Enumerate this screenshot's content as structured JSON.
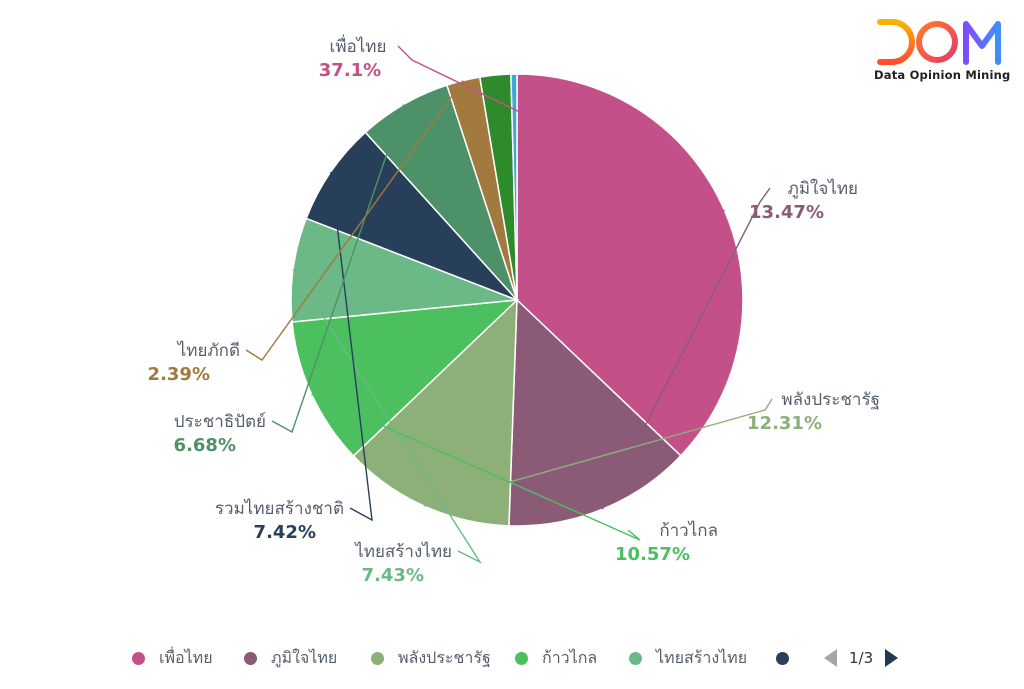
{
  "chart_data": {
    "type": "pie",
    "slices": [
      {
        "name": "เพื่อไทย",
        "value": 37.1,
        "label": "37.1%",
        "color": "#c4508a",
        "label_shown": true
      },
      {
        "name": "ภูมิใจไทย",
        "value": 13.47,
        "label": "13.47%",
        "color": "#8a5a77",
        "label_shown": true
      },
      {
        "name": "พลังประชารัฐ",
        "value": 12.31,
        "label": "12.31%",
        "color": "#8db079",
        "label_shown": true
      },
      {
        "name": "ก้าวไกล",
        "value": 10.57,
        "label": "10.57%",
        "color": "#4cbf5f",
        "label_shown": true
      },
      {
        "name": "ไทยสร้างไทย",
        "value": 7.43,
        "label": "7.43%",
        "color": "#6ab987",
        "label_shown": true
      },
      {
        "name": "รวมไทยสร้างชาติ",
        "value": 7.42,
        "label": "7.42%",
        "color": "#283f5a",
        "label_shown": true
      },
      {
        "name": "ประชาธิปัตย์",
        "value": 6.68,
        "label": "6.68%",
        "color": "#4d9169",
        "label_shown": true
      },
      {
        "name": "ไทยภักดี",
        "value": 2.39,
        "label": "2.39%",
        "color": "#a27a3f",
        "label_shown": true
      },
      {
        "name": "",
        "value": 2.2,
        "label": "",
        "color": "#2e8b2c",
        "label_shown": false
      },
      {
        "name": "",
        "value": 0.43,
        "label": "",
        "color": "#3fa7d9",
        "label_shown": false
      }
    ],
    "start": "12 o'clock",
    "direction": "clockwise",
    "legend_position": "bottom"
  },
  "legend": {
    "items": [
      {
        "label": "เพื่อไทย",
        "color": "#c4508a"
      },
      {
        "label": "ภูมิใจไทย",
        "color": "#8a5a77"
      },
      {
        "label": "พลังประชารัฐ",
        "color": "#8db079"
      },
      {
        "label": "ก้าวไกล",
        "color": "#4cbf5f"
      },
      {
        "label": "ไทยสร้างไทย",
        "color": "#6ab987"
      },
      {
        "label": "",
        "color": "#283f5a"
      }
    ],
    "page": "1/3"
  },
  "logo": {
    "letters": [
      "D",
      "O",
      "M"
    ],
    "subtitle": "Data Opinion Mining",
    "colors": {
      "d_top": "#f5b400",
      "d_bottom": "#ff4d2e",
      "o": "#e23b6a",
      "m_left": "#7c4dff",
      "m_right": "#3e8ef7"
    }
  },
  "icons": {
    "prev": "triangle-left-icon",
    "next": "triangle-right-icon",
    "legend_marker": "circle-icon"
  }
}
